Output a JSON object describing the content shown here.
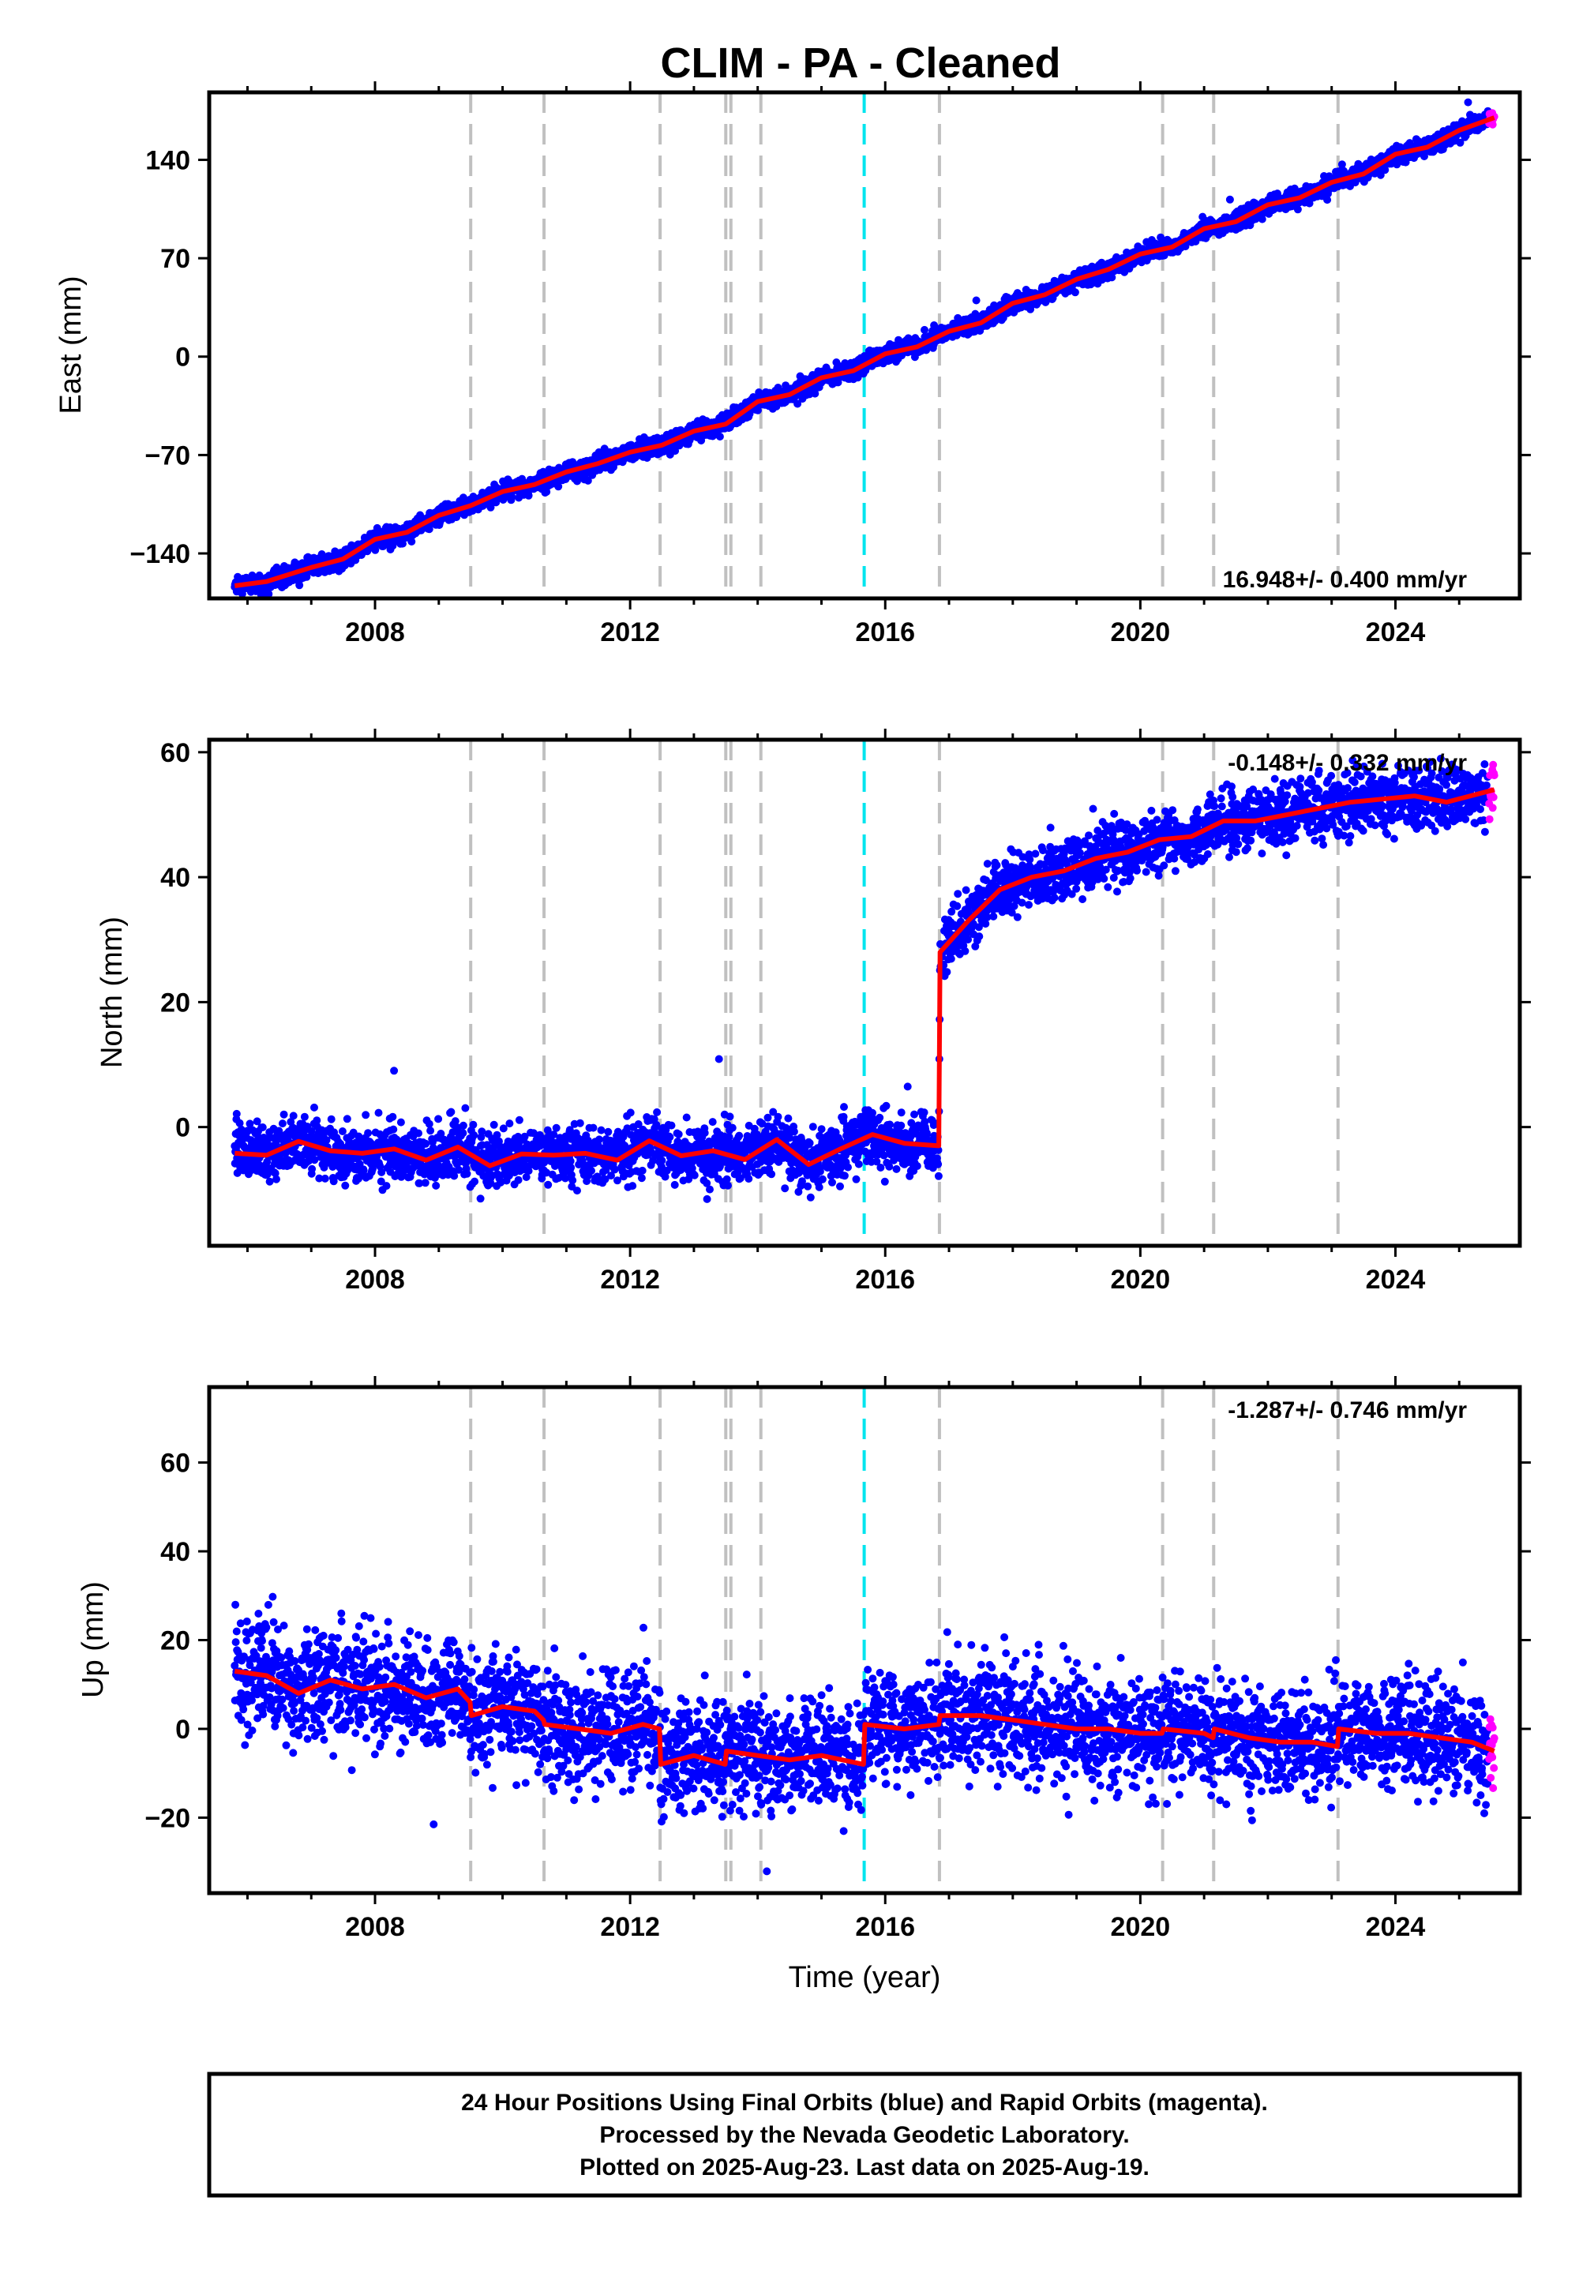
{
  "title": "CLIM  - PA - Cleaned",
  "xlabel": "Time (year)",
  "footer": {
    "lines": [
      "24 Hour Positions Using Final Orbits (blue) and Rapid Orbits (magenta).",
      "Processed by the Nevada Geodetic Laboratory.",
      "Plotted on 2025-Aug-23. Last data on 2025-Aug-19."
    ]
  },
  "colors": {
    "final_points": "#0000ff",
    "rapid_points": "#ff00ff",
    "model_line": "#ff0000",
    "event_line": "#c0c0c0",
    "highlight_event_line": "#00e5ee"
  },
  "chart_data": [
    {
      "type": "scatter",
      "component": "east",
      "ylabel": "East (mm)",
      "rate_text": "16.948+/- 0.400 mm/yr",
      "xlim": [
        2005.4,
        2025.95
      ],
      "ylim": [
        -172,
        188
      ],
      "xticks": [
        2008,
        2012,
        2016,
        2020,
        2024
      ],
      "yticks": [
        -140,
        -70,
        0,
        70,
        140
      ],
      "event_lines": [
        2009.5,
        2010.65,
        2012.47,
        2013.5,
        2013.58,
        2014.05,
        2016.85,
        2020.35,
        2021.15,
        2023.1
      ],
      "highlight_event_lines": [
        2015.67
      ],
      "model": {
        "x": [
          2005.8,
          2006.3,
          2007.0,
          2007.5,
          2008.0,
          2008.5,
          2009.0,
          2009.5,
          2010.0,
          2010.5,
          2011.0,
          2011.5,
          2012.0,
          2012.5,
          2013.0,
          2013.5,
          2014.0,
          2014.5,
          2015.0,
          2015.5,
          2016.0,
          2016.5,
          2017.0,
          2017.5,
          2018.0,
          2018.5,
          2019.0,
          2019.5,
          2020.0,
          2020.5,
          2021.0,
          2021.5,
          2022.0,
          2022.5,
          2023.0,
          2023.5,
          2024.0,
          2024.5,
          2025.0,
          2025.55
        ],
        "y": [
          -163,
          -160,
          -150,
          -144,
          -130,
          -125,
          -113,
          -106,
          -96,
          -91,
          -82,
          -76,
          -68,
          -63,
          -53,
          -48,
          -32,
          -27,
          -15,
          -10,
          2,
          7,
          18,
          24,
          38,
          44,
          55,
          62,
          73,
          78,
          91,
          96,
          108,
          113,
          124,
          130,
          144,
          149,
          161,
          170
        ]
      },
      "noise_sd": 3.2,
      "n_points": 3800
    },
    {
      "type": "scatter",
      "component": "north",
      "ylabel": "North (mm)",
      "rate_text": "-0.148+/- 0.332 mm/yr",
      "xlim": [
        2005.4,
        2025.95
      ],
      "ylim": [
        -19,
        62
      ],
      "xticks": [
        2008,
        2012,
        2016,
        2020,
        2024
      ],
      "yticks": [
        0,
        20,
        40,
        60
      ],
      "event_lines": [
        2009.5,
        2010.65,
        2012.47,
        2013.5,
        2013.58,
        2014.05,
        2016.85,
        2020.35,
        2021.15,
        2023.1
      ],
      "highlight_event_lines": [
        2015.67
      ],
      "model": {
        "x": [
          2005.8,
          2006.3,
          2006.8,
          2007.3,
          2007.8,
          2008.3,
          2008.8,
          2009.3,
          2009.8,
          2010.3,
          2010.8,
          2011.3,
          2011.8,
          2012.3,
          2012.8,
          2013.3,
          2013.8,
          2014.3,
          2014.8,
          2015.3,
          2015.8,
          2016.3,
          2016.84,
          2016.86,
          2017.3,
          2017.8,
          2018.3,
          2018.8,
          2019.3,
          2019.8,
          2020.3,
          2020.8,
          2021.3,
          2021.8,
          2022.3,
          2022.8,
          2023.3,
          2023.8,
          2024.3,
          2024.8,
          2025.55
        ],
        "y": [
          -4.2,
          -4.5,
          -2.3,
          -3.8,
          -4.2,
          -3.5,
          -5.3,
          -3.2,
          -6.2,
          -4.3,
          -4.5,
          -4.2,
          -5.3,
          -2.2,
          -4.6,
          -3.8,
          -5.2,
          -2.0,
          -6.0,
          -3.5,
          -1.2,
          -2.6,
          -3.0,
          28.0,
          33.0,
          38.0,
          40.0,
          41.0,
          43.0,
          44.0,
          46.0,
          46.5,
          49.0,
          49.0,
          50.0,
          51.0,
          52.0,
          52.5,
          53.0,
          52.0,
          54.0
        ]
      },
      "noise_sd": 2.3,
      "n_points": 3800
    },
    {
      "type": "scatter",
      "component": "up",
      "ylabel": "Up (mm)",
      "rate_text": "-1.287+/- 0.746 mm/yr",
      "xlim": [
        2005.4,
        2025.95
      ],
      "ylim": [
        -37,
        77
      ],
      "xticks": [
        2008,
        2012,
        2016,
        2020,
        2024
      ],
      "yticks": [
        -20,
        0,
        20,
        40,
        60
      ],
      "event_lines": [
        2009.5,
        2010.65,
        2012.47,
        2013.5,
        2013.58,
        2014.05,
        2016.85,
        2020.35,
        2021.15,
        2023.1
      ],
      "highlight_event_lines": [
        2015.67
      ],
      "model": {
        "x": [
          2005.8,
          2006.3,
          2006.8,
          2007.3,
          2007.8,
          2008.3,
          2008.8,
          2009.3,
          2009.49,
          2009.51,
          2010.0,
          2010.5,
          2010.64,
          2010.66,
          2011.2,
          2011.7,
          2012.2,
          2012.46,
          2012.48,
          2013.0,
          2013.49,
          2013.51,
          2014.0,
          2014.5,
          2015.0,
          2015.66,
          2015.68,
          2016.3,
          2016.84,
          2016.86,
          2017.5,
          2018.0,
          2018.5,
          2019.0,
          2019.5,
          2020.0,
          2020.34,
          2020.36,
          2021.0,
          2021.14,
          2021.16,
          2021.7,
          2022.2,
          2022.7,
          2023.09,
          2023.11,
          2023.7,
          2024.2,
          2024.7,
          2025.2,
          2025.55
        ],
        "y": [
          13,
          12,
          8,
          11,
          9,
          10,
          7,
          9,
          6,
          3,
          5,
          4,
          2,
          1,
          0,
          -1,
          1,
          0,
          -8,
          -6,
          -8,
          -5,
          -6,
          -7,
          -6,
          -8,
          1,
          0,
          1,
          3,
          3,
          2,
          1,
          0,
          0,
          -1,
          -1,
          0,
          -1,
          -2,
          0,
          -2,
          -3,
          -3,
          -4,
          0,
          -1,
          -1,
          -2,
          -3,
          -5
        ]
      },
      "noise_sd": 6.2,
      "n_points": 3800
    }
  ]
}
